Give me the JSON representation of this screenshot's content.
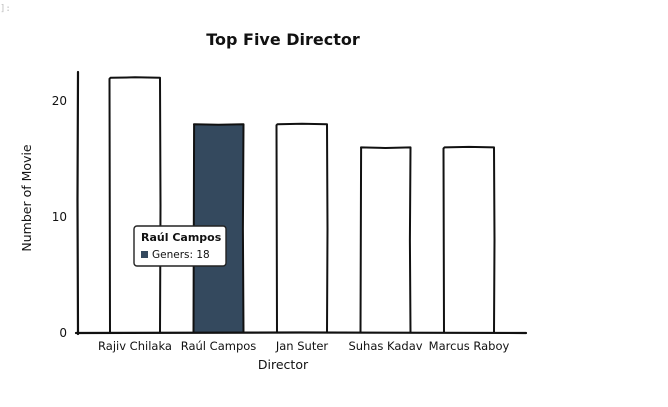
{
  "cell_prompt": "]:",
  "chart_data": {
    "type": "bar",
    "title": "Top Five Director",
    "xlabel": "Director",
    "ylabel": "Number of Movie",
    "categories": [
      "Rajiv Chilaka",
      "Raúl Campos",
      "Jan Suter",
      "Suhas Kadav",
      "Marcus Raboy"
    ],
    "values": [
      22,
      18,
      18,
      16,
      16
    ],
    "ylim": [
      0,
      22.5
    ],
    "yticks": [
      0,
      10,
      20
    ],
    "highlight_index": 1,
    "colors": {
      "bar_fill": "#ffffff",
      "bar_highlight": "#34495e",
      "stroke": "#111111"
    },
    "tooltip": {
      "title": "Raúl Campos",
      "series_label": "Geners",
      "value": 18
    }
  }
}
